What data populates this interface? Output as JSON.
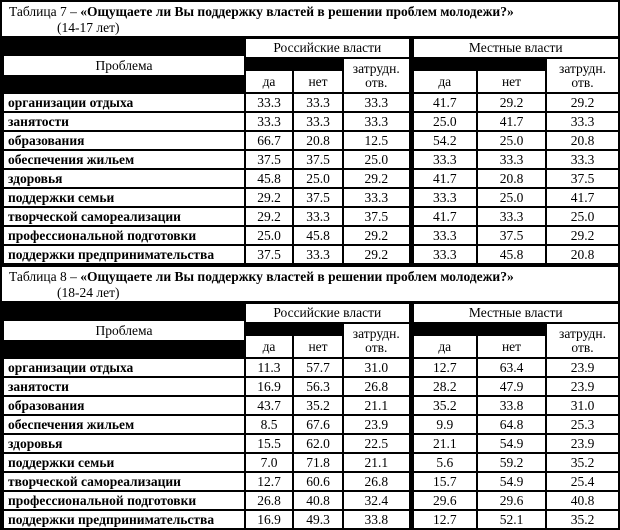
{
  "page": {
    "background": "#000000",
    "paper": "#ffffff",
    "text": "#000000"
  },
  "tables": [
    {
      "caption_prefix": "Таблица 7 – ",
      "caption_question": "«Ощущаете ли Вы поддержку властей в решении проблем молодежи?»",
      "caption_age": "(14-17 лет)",
      "headers": {
        "problem": "Проблема",
        "groups": [
          "Российские власти",
          "Местные власти"
        ],
        "sub": [
          "да",
          "нет",
          "затрудн. отв.",
          "да",
          "нет",
          "затрудн. отв."
        ]
      },
      "rows": [
        {
          "label": "организации отдыха",
          "values": [
            "33.3",
            "33.3",
            "33.3",
            "41.7",
            "29.2",
            "29.2"
          ]
        },
        {
          "label": "занятости",
          "values": [
            "33.3",
            "33.3",
            "33.3",
            "25.0",
            "41.7",
            "33.3"
          ]
        },
        {
          "label": "образования",
          "values": [
            "66.7",
            "20.8",
            "12.5",
            "54.2",
            "25.0",
            "20.8"
          ]
        },
        {
          "label": "обеспечения жильем",
          "values": [
            "37.5",
            "37.5",
            "25.0",
            "33.3",
            "33.3",
            "33.3"
          ]
        },
        {
          "label": "здоровья",
          "values": [
            "45.8",
            "25.0",
            "29.2",
            "41.7",
            "20.8",
            "37.5"
          ]
        },
        {
          "label": "поддержки семьи",
          "values": [
            "29.2",
            "37.5",
            "33.3",
            "33.3",
            "25.0",
            "41.7"
          ]
        },
        {
          "label": "творческой самореализации",
          "values": [
            "29.2",
            "33.3",
            "37.5",
            "41.7",
            "33.3",
            "25.0"
          ]
        },
        {
          "label": "профессиональной подготовки",
          "values": [
            "25.0",
            "45.8",
            "29.2",
            "33.3",
            "37.5",
            "29.2"
          ]
        },
        {
          "label": "поддержки предпринимательства",
          "values": [
            "37.5",
            "33.3",
            "29.2",
            "33.3",
            "45.8",
            "20.8"
          ]
        }
      ]
    },
    {
      "caption_prefix": "Таблица 8 – ",
      "caption_question": "«Ощущаете ли Вы поддержку властей в решении проблем молодежи?»",
      "caption_age": "(18-24 лет)",
      "headers": {
        "problem": "Проблема",
        "groups": [
          "Российские власти",
          "Местные власти"
        ],
        "sub": [
          "да",
          "нет",
          "затрудн. отв.",
          "да",
          "нет",
          "затрудн. отв."
        ]
      },
      "rows": [
        {
          "label": "организации отдыха",
          "values": [
            "11.3",
            "57.7",
            "31.0",
            "12.7",
            "63.4",
            "23.9"
          ]
        },
        {
          "label": "занятости",
          "values": [
            "16.9",
            "56.3",
            "26.8",
            "28.2",
            "47.9",
            "23.9"
          ]
        },
        {
          "label": "образования",
          "values": [
            "43.7",
            "35.2",
            "21.1",
            "35.2",
            "33.8",
            "31.0"
          ]
        },
        {
          "label": "обеспечения жильем",
          "values": [
            "8.5",
            "67.6",
            "23.9",
            "9.9",
            "64.8",
            "25.3"
          ]
        },
        {
          "label": "здоровья",
          "values": [
            "15.5",
            "62.0",
            "22.5",
            "21.1",
            "54.9",
            "23.9"
          ]
        },
        {
          "label": "поддержки семьи",
          "values": [
            "7.0",
            "71.8",
            "21.1",
            "5.6",
            "59.2",
            "35.2"
          ]
        },
        {
          "label": "творческой самореализации",
          "values": [
            "12.7",
            "60.6",
            "26.8",
            "15.7",
            "54.9",
            "25.4"
          ]
        },
        {
          "label": "профессиональной подготовки",
          "values": [
            "26.8",
            "40.8",
            "32.4",
            "29.6",
            "29.6",
            "40.8"
          ]
        },
        {
          "label": "поддержки предпринимательства",
          "values": [
            "16.9",
            "49.3",
            "33.8",
            "12.7",
            "52.1",
            "35.2"
          ]
        }
      ]
    }
  ]
}
